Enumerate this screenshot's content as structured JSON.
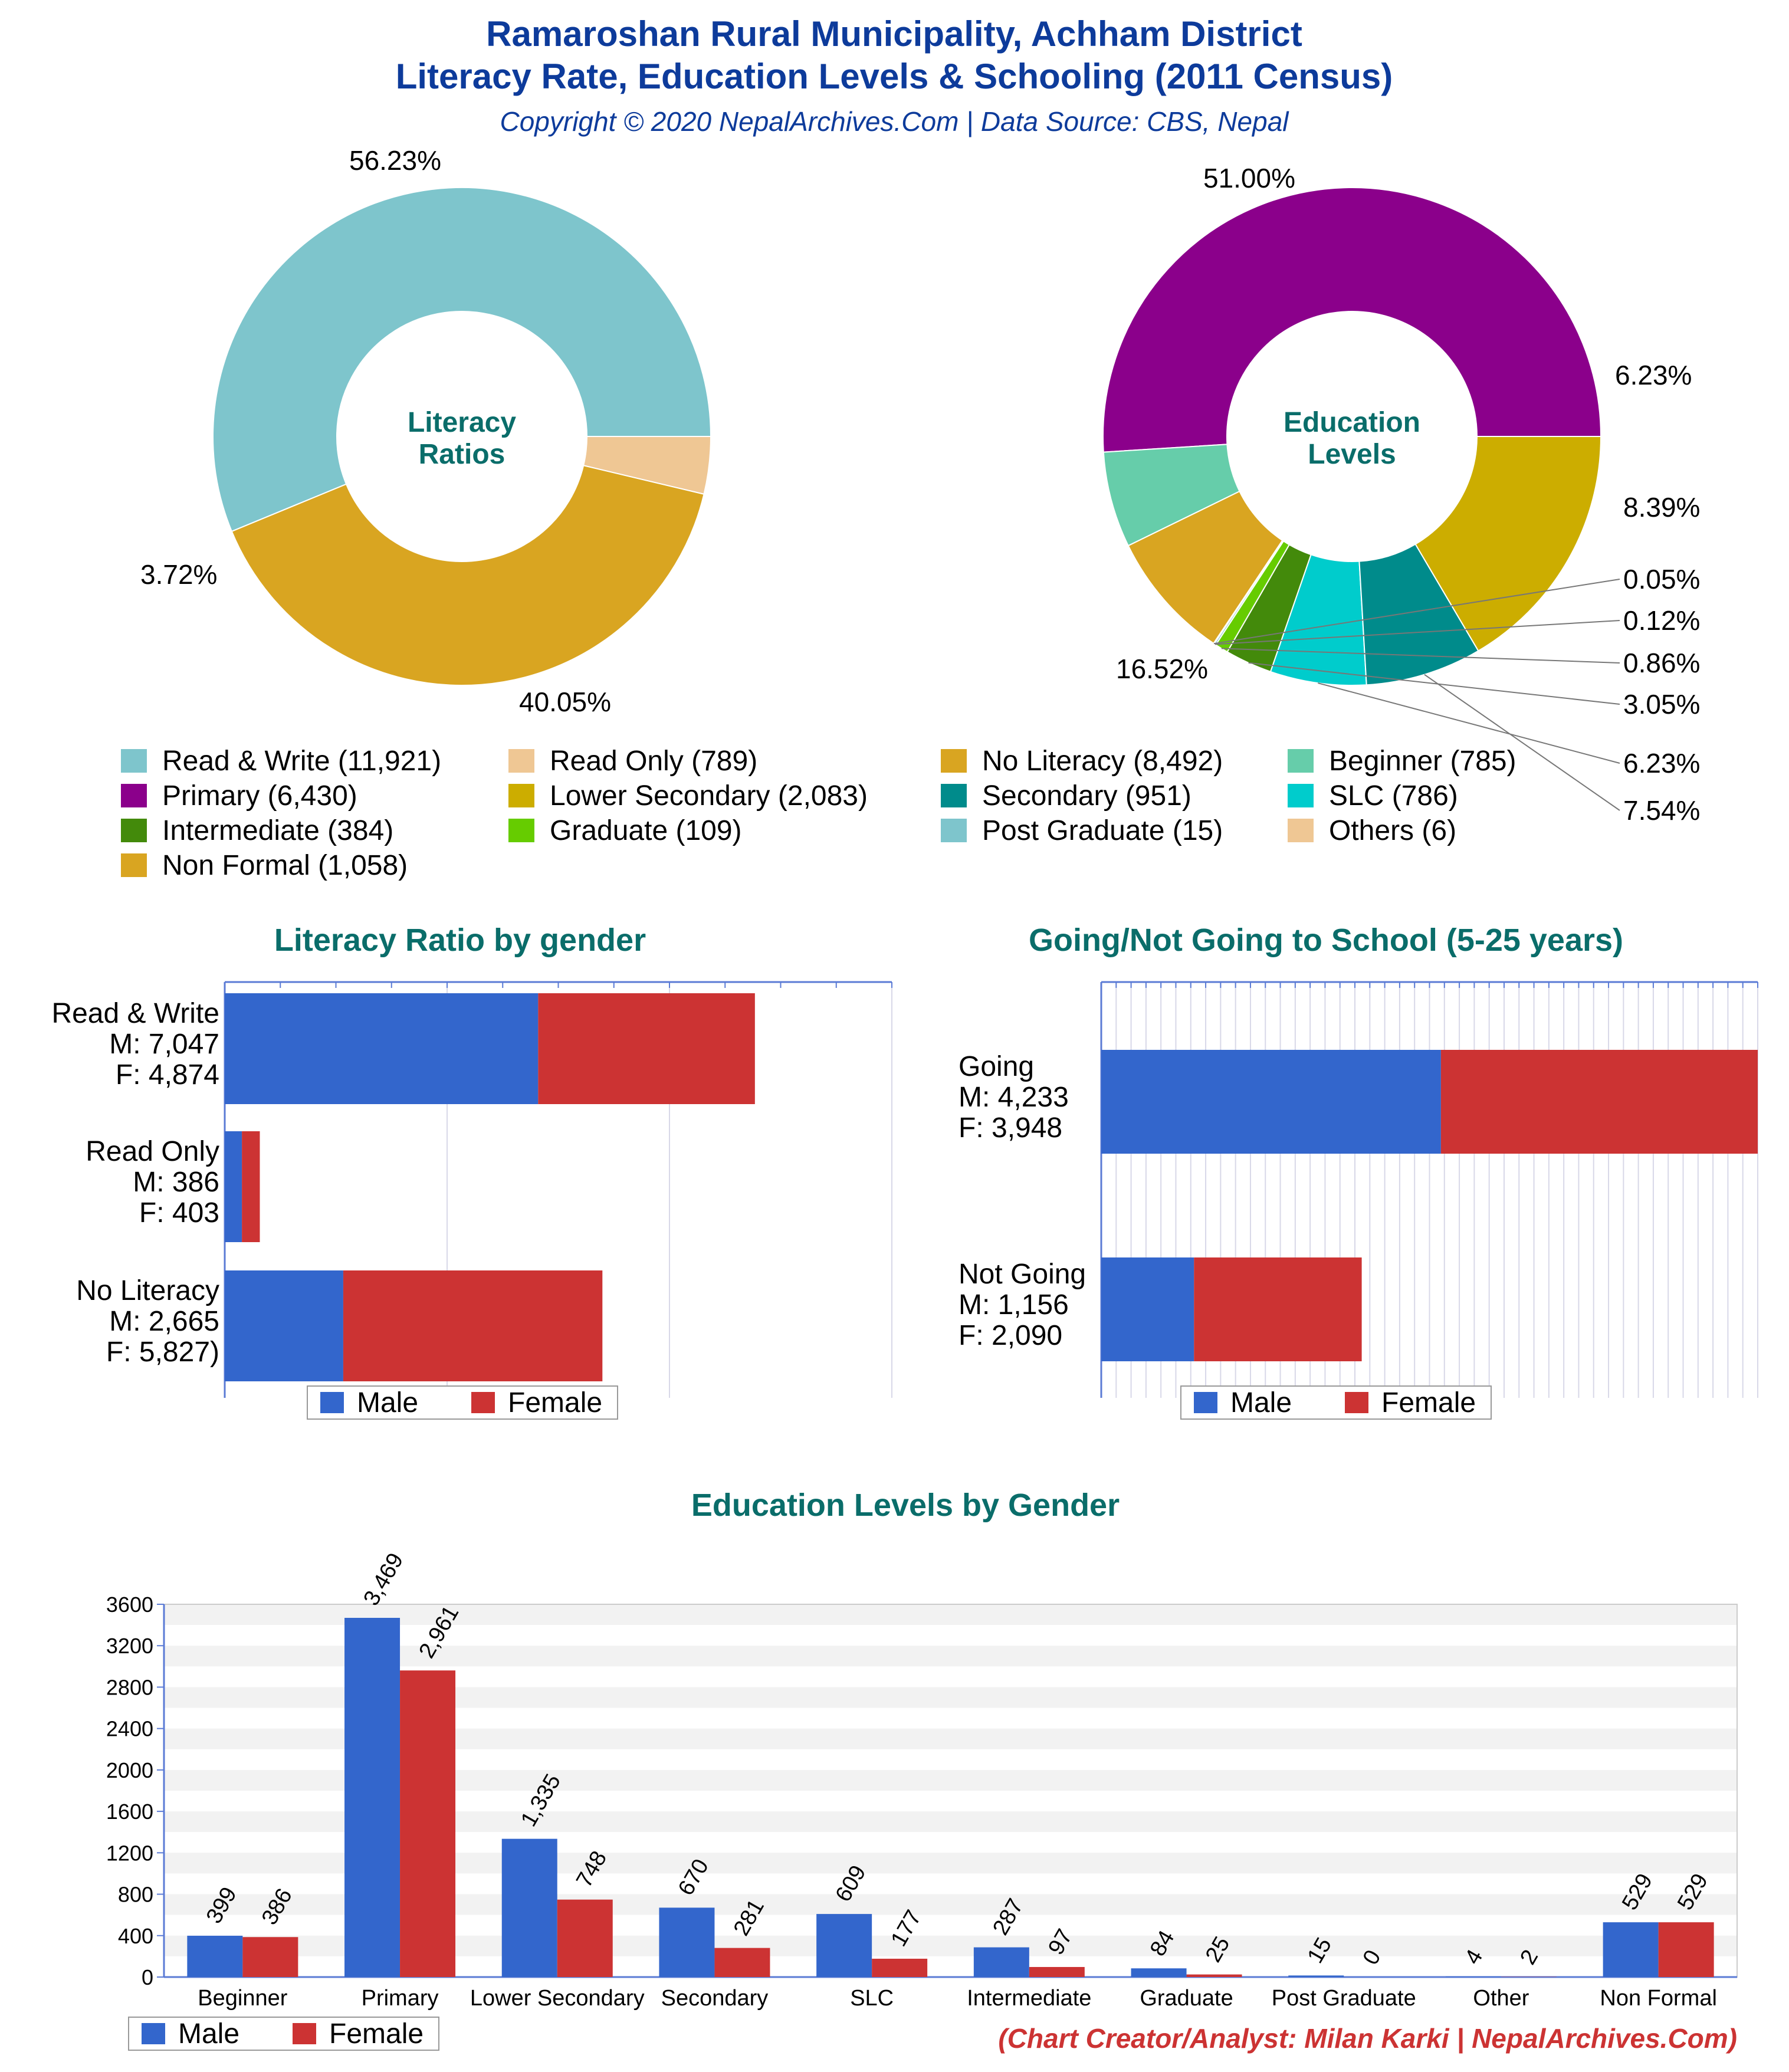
{
  "header": {
    "title_line1": "Ramaroshan Rural Municipality, Achham District",
    "title_line2": "Literacy Rate, Education Levels & Schooling (2011 Census)",
    "copyright": "Copyright © 2020 NepalArchives.Com | Data Source: CBS, Nepal"
  },
  "footer": {
    "credit": "(Chart Creator/Analyst: Milan Karki | NepalArchives.Com)"
  },
  "colors": {
    "title": "#0d3b9b",
    "teal_heading": "#0a6d6a",
    "male": "#3366cc",
    "female": "#cc3333",
    "credit": "#cc3333"
  },
  "chart_data": [
    {
      "id": "literacy-donut",
      "type": "pie",
      "center_label": [
        "Literacy",
        "Ratios"
      ],
      "slices": [
        {
          "label": "Read & Write",
          "value": 11921,
          "pct": "56.23%",
          "color": "#7ec5cc"
        },
        {
          "label": "No Literacy",
          "value": 8492,
          "pct": "40.05%",
          "color": "#d9a521"
        },
        {
          "label": "Read Only",
          "value": 789,
          "pct": "3.72%",
          "color": "#efc794"
        }
      ]
    },
    {
      "id": "education-donut",
      "type": "pie",
      "center_label": [
        "Education",
        "Levels"
      ],
      "slices": [
        {
          "label": "Primary",
          "value": 6430,
          "pct": "51.00%",
          "color": "#8b008b"
        },
        {
          "label": "Beginner",
          "value": 785,
          "pct": "6.23%",
          "color": "#66cdaa"
        },
        {
          "label": "Non Formal",
          "value": 1058,
          "pct": "8.39%",
          "color": "#d9a521"
        },
        {
          "label": "Others",
          "value": 6,
          "pct": "0.05%",
          "color": "#efc794"
        },
        {
          "label": "Post Graduate",
          "value": 15,
          "pct": "0.12%",
          "color": "#7ec5cc"
        },
        {
          "label": "Graduate",
          "value": 109,
          "pct": "0.86%",
          "color": "#66cc00"
        },
        {
          "label": "Intermediate",
          "value": 384,
          "pct": "3.05%",
          "color": "#438a0b"
        },
        {
          "label": "SLC",
          "value": 786,
          "pct": "6.23%",
          "color": "#00cccc"
        },
        {
          "label": "Secondary",
          "value": 951,
          "pct": "7.54%",
          "color": "#008b8b"
        },
        {
          "label": "Lower Secondary",
          "value": 2083,
          "pct": "16.52%",
          "color": "#ccad00"
        }
      ]
    },
    {
      "id": "literacy-by-gender",
      "type": "bar",
      "orientation": "horizontal",
      "stacked": true,
      "title": "Literacy Ratio by gender",
      "categories": [
        {
          "name": "Read & Write",
          "m_label": "M: 7,047",
          "f_label": "F: 4,874"
        },
        {
          "name": "Read Only",
          "m_label": "M: 386",
          "f_label": "F: 403"
        },
        {
          "name": "No Literacy",
          "m_label": "M: 2,665",
          "f_label": "F: 5,827)"
        }
      ],
      "series": [
        {
          "name": "Male",
          "values": [
            7047,
            386,
            2665
          ]
        },
        {
          "name": "Female",
          "values": [
            4874,
            403,
            5827
          ]
        }
      ],
      "xlim": [
        0,
        15000
      ],
      "legend": "bottom"
    },
    {
      "id": "school-by-gender",
      "type": "bar",
      "orientation": "horizontal",
      "stacked": true,
      "title": "Going/Not Going to School (5-25 years)",
      "categories": [
        {
          "name": "Going",
          "m_label": "M: 4,233",
          "f_label": "F: 3,948"
        },
        {
          "name": "Not Going",
          "m_label": "M: 1,156",
          "f_label": "F: 2,090"
        }
      ],
      "series": [
        {
          "name": "Male",
          "values": [
            4233,
            1156
          ]
        },
        {
          "name": "Female",
          "values": [
            3948,
            2090
          ]
        }
      ],
      "xlim": [
        0,
        8181
      ],
      "legend": "bottom"
    },
    {
      "id": "education-by-gender",
      "type": "bar",
      "orientation": "vertical",
      "title": "Education Levels by Gender",
      "categories": [
        "Beginner",
        "Primary",
        "Lower Secondary",
        "Secondary",
        "SLC",
        "Intermediate",
        "Graduate",
        "Post Graduate",
        "Other",
        "Non Formal"
      ],
      "series": [
        {
          "name": "Male",
          "values": [
            399,
            3469,
            1335,
            670,
            609,
            287,
            84,
            15,
            4,
            529
          ],
          "labels": [
            "399",
            "3,469",
            "1,335",
            "670",
            "609",
            "287",
            "84",
            "15",
            "4",
            "529"
          ]
        },
        {
          "name": "Female",
          "values": [
            386,
            2961,
            748,
            281,
            177,
            97,
            25,
            0,
            2,
            529
          ],
          "labels": [
            "386",
            "2,961",
            "748",
            "281",
            "177",
            "97",
            "25",
            "0",
            "2",
            "529"
          ]
        }
      ],
      "ylim": [
        0,
        3600
      ],
      "yticks": [
        "0",
        "400",
        "800",
        "1200",
        "1600",
        "2000",
        "2400",
        "2800",
        "3200",
        "3600"
      ],
      "legend": "bottom-left"
    }
  ],
  "legend_top": [
    {
      "label": "Read & Write (11,921)",
      "color": "#7ec5cc"
    },
    {
      "label": "Read Only (789)",
      "color": "#efc794"
    },
    {
      "label": "No Literacy (8,492)",
      "color": "#d9a521"
    },
    {
      "label": "Beginner (785)",
      "color": "#66cdaa"
    },
    {
      "label": "Primary (6,430)",
      "color": "#8b008b"
    },
    {
      "label": "Lower Secondary (2,083)",
      "color": "#ccad00"
    },
    {
      "label": "Secondary (951)",
      "color": "#008b8b"
    },
    {
      "label": "SLC (786)",
      "color": "#00cccc"
    },
    {
      "label": "Intermediate (384)",
      "color": "#438a0b"
    },
    {
      "label": "Graduate (109)",
      "color": "#66cc00"
    },
    {
      "label": "Post Graduate (15)",
      "color": "#7ec5cc"
    },
    {
      "label": "Others (6)",
      "color": "#efc794"
    },
    {
      "label": "Non Formal (1,058)",
      "color": "#d9a521"
    }
  ]
}
